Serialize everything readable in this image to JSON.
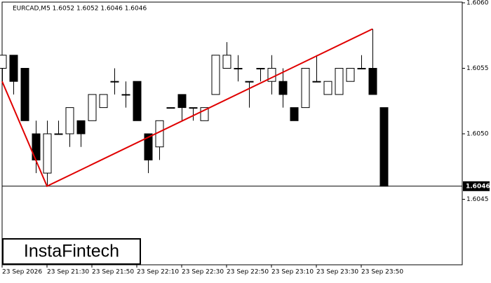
{
  "chart_data": {
    "type": "candlestick",
    "title": "EURCAD,M5  1.6052 1.6052 1.6046 1.6046",
    "categories": [
      "23 Sep 2026",
      null,
      null,
      null,
      "23 Sep 21:30",
      null,
      null,
      null,
      "23 Sep 21:50",
      null,
      null,
      null,
      "23 Sep 22:10",
      null,
      null,
      null,
      "23 Sep 22:30",
      null,
      null,
      null,
      "23 Sep 22:50",
      null,
      null,
      null,
      "23 Sep 23:10",
      null,
      null,
      null,
      "23 Sep 23:30",
      null,
      null,
      null,
      "23 Sep 23:50",
      null,
      null
    ],
    "open": [
      1.6055,
      1.6056,
      1.6055,
      1.605,
      1.6047,
      1.605,
      1.605,
      1.6051,
      1.6051,
      1.6052,
      1.6054,
      1.6053,
      1.6054,
      1.605,
      1.6049,
      1.6052,
      1.6053,
      1.6052,
      1.6051,
      1.6053,
      1.6055,
      1.6055,
      1.6054,
      1.6055,
      1.6054,
      1.6054,
      1.6052,
      1.6052,
      1.6054,
      1.6053,
      1.6053,
      1.6054,
      1.6055,
      1.6055,
      1.6052
    ],
    "high": [
      1.6056,
      1.6056,
      1.6055,
      1.6051,
      1.6051,
      1.6051,
      1.6052,
      1.6051,
      1.6053,
      1.6053,
      1.6055,
      1.6054,
      1.6054,
      1.605,
      1.6051,
      1.6052,
      1.6053,
      1.6052,
      1.6052,
      1.6056,
      1.6057,
      1.6056,
      1.6054,
      1.6055,
      1.6056,
      1.6055,
      1.6052,
      1.6055,
      1.6056,
      1.6054,
      1.6055,
      1.6055,
      1.6056,
      1.6058,
      1.6052
    ],
    "low": [
      1.6054,
      1.6053,
      1.6051,
      1.6047,
      1.6046,
      1.605,
      1.6049,
      1.6049,
      1.6051,
      1.6052,
      1.6053,
      1.6052,
      1.6051,
      1.6047,
      1.6048,
      1.6052,
      1.6051,
      1.6051,
      1.6051,
      1.6053,
      1.6055,
      1.6054,
      1.6052,
      1.6054,
      1.6053,
      1.6052,
      1.6051,
      1.6052,
      1.6054,
      1.6053,
      1.6053,
      1.6054,
      1.6055,
      1.6053,
      1.6046
    ],
    "close": [
      1.6056,
      1.6054,
      1.6051,
      1.6048,
      1.605,
      1.605,
      1.6052,
      1.605,
      1.6053,
      1.6053,
      1.6054,
      1.6053,
      1.6051,
      1.6048,
      1.6051,
      1.6052,
      1.6052,
      1.6052,
      1.6052,
      1.6056,
      1.6056,
      1.6055,
      1.6054,
      1.6055,
      1.6055,
      1.6053,
      1.6051,
      1.6055,
      1.6054,
      1.6054,
      1.6055,
      1.6055,
      1.6055,
      1.6053,
      1.6046
    ],
    "up_color": "#ffffff",
    "down_color": "#000000",
    "ylim": [
      1.604,
      1.606
    ],
    "yticks": [
      1.6045,
      {
        "value": 1.605,
        "label": "1.6050"
      },
      1.6055,
      {
        "value": 1.606,
        "label": "1.6060"
      }
    ],
    "current_price": 1.6046,
    "trendline": {
      "color": "#e00000",
      "x": [
        0,
        4,
        33
      ],
      "values": [
        1.6054,
        1.6046,
        1.6058
      ]
    },
    "watermark": "InstaFintech"
  }
}
